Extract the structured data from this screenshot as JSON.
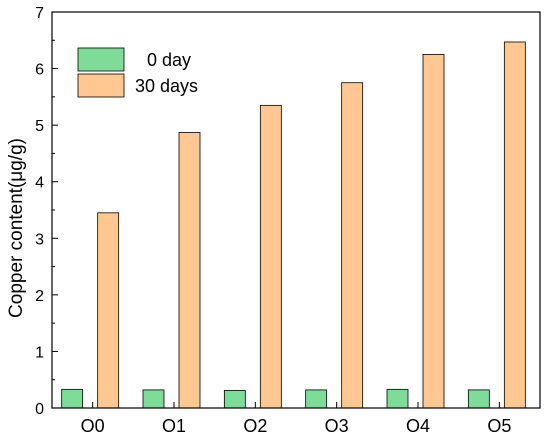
{
  "chart_data": {
    "type": "bar",
    "xlabel": "",
    "ylabel": "Copper content(μg/g)",
    "ylim": [
      0,
      7
    ],
    "yticks": [
      "0",
      "1",
      "2",
      "3",
      "4",
      "5",
      "6",
      "7"
    ],
    "categories": [
      "O0",
      "O1",
      "O2",
      "O3",
      "O4",
      "O5"
    ],
    "series": [
      {
        "name": "0 day",
        "values": [
          0.33,
          0.32,
          0.31,
          0.32,
          0.33,
          0.32
        ],
        "color": "#7fdc98"
      },
      {
        "name": "30 days",
        "values": [
          3.45,
          4.87,
          5.35,
          5.75,
          6.25,
          6.47
        ],
        "color": "#ffc892"
      }
    ],
    "legend": "top-left",
    "grid": false
  }
}
